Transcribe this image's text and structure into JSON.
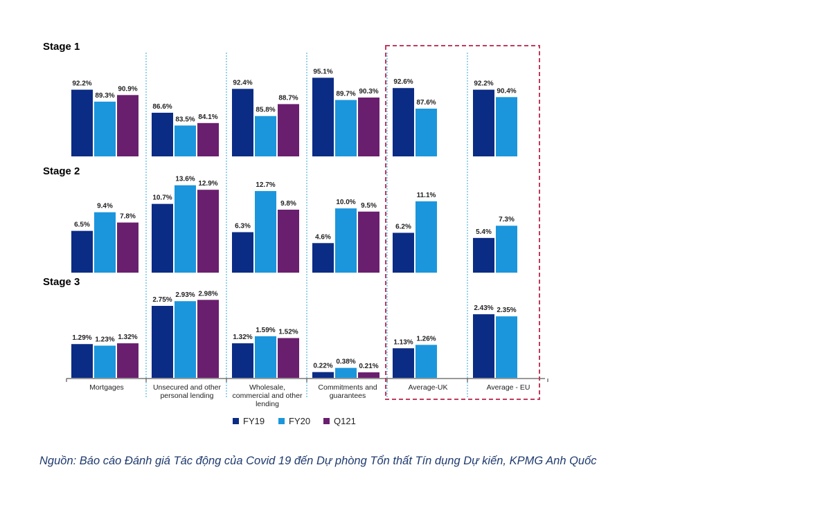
{
  "chart_data": {
    "type": "bar",
    "stages": [
      "Stage 1",
      "Stage 2",
      "Stage 3"
    ],
    "categories": [
      {
        "label": [
          "Mortgages"
        ]
      },
      {
        "label": [
          "Unsecured and other",
          "personal lending"
        ]
      },
      {
        "label": [
          "Wholesale,",
          "commercial and other",
          "lending"
        ]
      },
      {
        "label": [
          "Commitments and",
          "guarantees"
        ]
      },
      {
        "label": [
          "Average-UK"
        ]
      },
      {
        "label": [
          "Average - EU"
        ]
      }
    ],
    "series": [
      {
        "name": "FY19",
        "color": "#0b2c84",
        "values": [
          [
            92.2,
            86.6,
            92.4,
            95.1,
            92.6,
            92.2
          ],
          [
            6.5,
            10.7,
            6.3,
            4.6,
            6.2,
            5.4
          ],
          [
            1.29,
            2.75,
            1.32,
            0.22,
            1.13,
            2.43
          ]
        ],
        "labels": [
          [
            "92.2%",
            "86.6%",
            "92.4%",
            "95.1%",
            "92.6%",
            "92.2%"
          ],
          [
            "6.5%",
            "10.7%",
            "6.3%",
            "4.6%",
            "6.2%",
            "5.4%"
          ],
          [
            "1.29%",
            "2.75%",
            "1.32%",
            "0.22%",
            "1.13%",
            "2.43%"
          ]
        ]
      },
      {
        "name": "FY20",
        "color": "#1b96dc",
        "values": [
          [
            89.3,
            83.5,
            85.8,
            89.7,
            87.6,
            90.4
          ],
          [
            9.4,
            13.6,
            12.7,
            10.0,
            11.1,
            7.3
          ],
          [
            1.23,
            2.93,
            1.59,
            0.38,
            1.26,
            2.35
          ]
        ],
        "labels": [
          [
            "89.3%",
            "83.5%",
            "85.8%",
            "89.7%",
            "87.6%",
            "90.4%"
          ],
          [
            "9.4%",
            "13.6%",
            "12.7%",
            "10.0%",
            "11.1%",
            "7.3%"
          ],
          [
            "1.23%",
            "2.93%",
            "1.59%",
            "0.38%",
            "1.26%",
            "2.35%"
          ]
        ]
      },
      {
        "name": "Q121",
        "color": "#6a1f6e",
        "values": [
          [
            90.9,
            84.1,
            88.7,
            90.3,
            null,
            null
          ],
          [
            7.8,
            12.9,
            9.8,
            9.5,
            null,
            null
          ],
          [
            1.32,
            2.98,
            1.52,
            0.21,
            null,
            null
          ]
        ],
        "labels": [
          [
            "90.9%",
            "84.1%",
            "88.7%",
            "90.3%",
            null,
            null
          ],
          [
            "7.8%",
            "12.9%",
            "9.8%",
            "9.5%",
            null,
            null
          ],
          [
            "1.32%",
            "2.98%",
            "1.52%",
            "0.21%",
            null,
            null
          ]
        ]
      }
    ],
    "stage_ranges": [
      [
        76,
        96
      ],
      [
        0,
        14
      ],
      [
        0,
        3.2
      ]
    ],
    "unit": "%",
    "legend_position": "bottom-center",
    "highlighted_categories": [
      "Average-UK",
      "Average - EU"
    ],
    "highlight_color": "#c0395e",
    "separator_color": "#2aa7d6"
  },
  "source_note": "Nguồn: Báo cáo Đánh giá Tác động của Covid 19 đến Dự phòng Tổn thất Tín dụng Dự kiến, KPMG Anh Quốc"
}
